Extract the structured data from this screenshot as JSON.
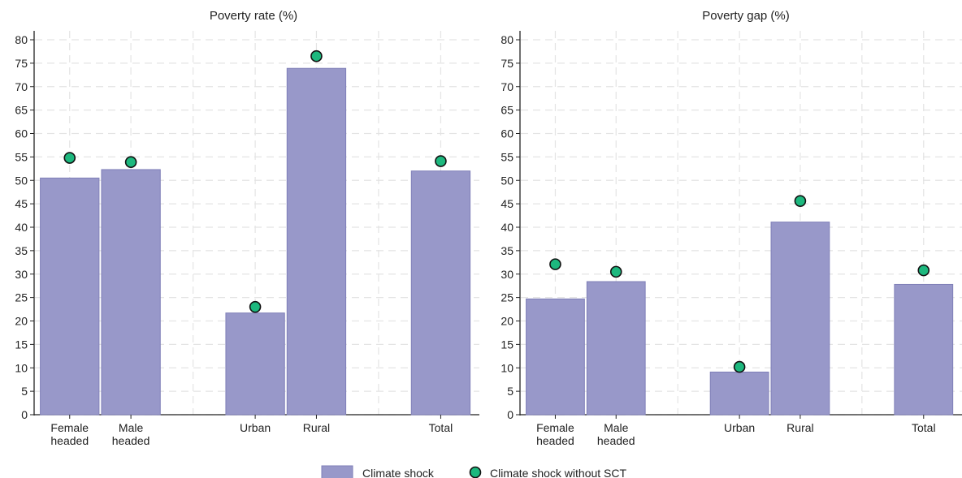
{
  "chart_data": [
    {
      "type": "bar",
      "title": "Poverty rate (%)",
      "categories": [
        "Female\nheaded",
        "Male\nheaded",
        "Urban",
        "Rural",
        "Total"
      ],
      "groups": [
        [
          0,
          1
        ],
        [
          2,
          3
        ],
        [
          4
        ]
      ],
      "ylim": [
        0,
        80
      ],
      "yticks": [
        0,
        5,
        10,
        15,
        20,
        25,
        30,
        35,
        40,
        45,
        50,
        55,
        60,
        65,
        70,
        75,
        80
      ],
      "series": [
        {
          "name": "Climate shock",
          "kind": "bar",
          "values": [
            50.5,
            52.3,
            21.7,
            73.9,
            52.0
          ]
        },
        {
          "name": "Climate shock without SCT",
          "kind": "marker",
          "values": [
            54.8,
            53.9,
            23.0,
            76.5,
            54.1
          ]
        }
      ],
      "grid": true
    },
    {
      "type": "bar",
      "title": "Poverty gap (%)",
      "categories": [
        "Female\nheaded",
        "Male\nheaded",
        "Urban",
        "Rural",
        "Total"
      ],
      "groups": [
        [
          0,
          1
        ],
        [
          2,
          3
        ],
        [
          4
        ]
      ],
      "ylim": [
        0,
        80
      ],
      "yticks": [
        0,
        5,
        10,
        15,
        20,
        25,
        30,
        35,
        40,
        45,
        50,
        55,
        60,
        65,
        70,
        75,
        80
      ],
      "series": [
        {
          "name": "Climate shock",
          "kind": "bar",
          "values": [
            24.7,
            28.4,
            9.1,
            41.1,
            27.8
          ]
        },
        {
          "name": "Climate shock without SCT",
          "kind": "marker",
          "values": [
            32.1,
            30.5,
            10.2,
            45.6,
            30.8
          ]
        }
      ],
      "grid": true
    }
  ],
  "legend": {
    "placement": "bottom",
    "items": [
      {
        "label": "Climate shock",
        "kind": "bar"
      },
      {
        "label": "Climate shock without SCT",
        "kind": "marker"
      }
    ]
  },
  "colors": {
    "bar_fill": "#9898c9",
    "bar_stroke": "#7f7fb8",
    "marker_fill": "#1db87e",
    "marker_stroke": "#111111",
    "grid": "#e4e4e4",
    "axis": "#222222"
  }
}
